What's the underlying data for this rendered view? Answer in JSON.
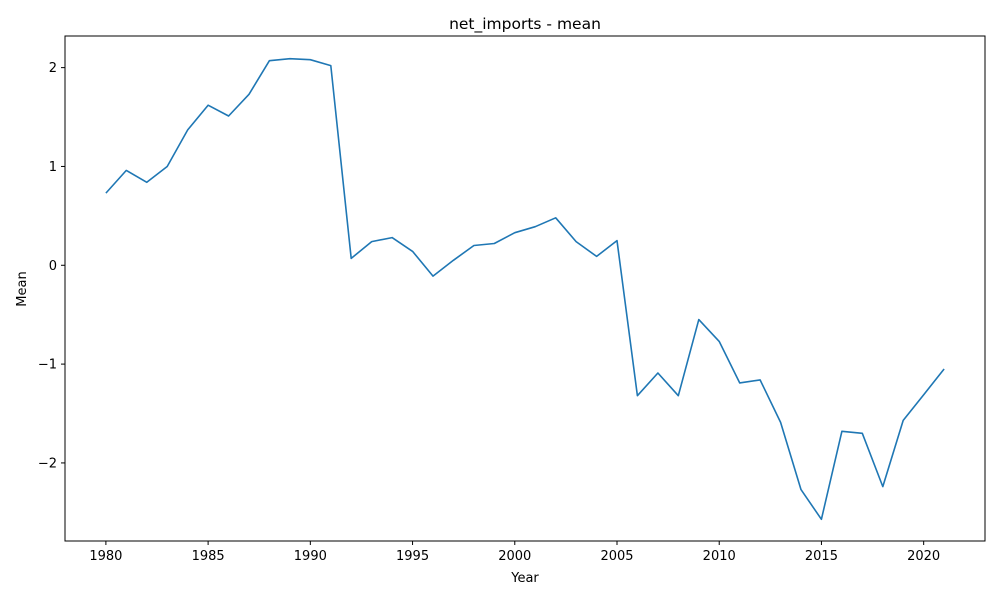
{
  "chart_data": {
    "type": "line",
    "title": "net_imports - mean",
    "xlabel": "Year",
    "ylabel": "Mean",
    "xlim": [
      1978,
      2023
    ],
    "ylim": [
      -2.79,
      2.32
    ],
    "xticks": [
      1980,
      1985,
      1990,
      1995,
      2000,
      2005,
      2010,
      2015,
      2020
    ],
    "yticks": [
      -2,
      -1,
      0,
      1,
      2
    ],
    "ytick_labels": [
      "−2",
      "−1",
      "0",
      "1",
      "2"
    ],
    "grid": false,
    "color": "#1f77b4",
    "series": [
      {
        "x": [
          1980,
          1981,
          1982,
          1983,
          1984,
          1985,
          1986,
          1987,
          1988,
          1989,
          1990,
          1991,
          1992,
          1993,
          1994,
          1995,
          1996,
          1997,
          1998,
          1999,
          2000,
          2001,
          2002,
          2003,
          2004,
          2005,
          2006,
          2007,
          2008,
          2009,
          2010,
          2011,
          2012,
          2013,
          2014,
          2015,
          2016,
          2017,
          2018,
          2019,
          2020,
          2021
        ],
        "values": [
          0.73,
          0.96,
          0.84,
          1.0,
          1.37,
          1.62,
          1.51,
          1.73,
          2.07,
          2.09,
          2.08,
          2.02,
          0.07,
          0.24,
          0.28,
          0.14,
          -0.11,
          0.05,
          0.2,
          0.22,
          0.33,
          0.39,
          0.48,
          0.24,
          0.09,
          0.25,
          -1.32,
          -1.09,
          -1.32,
          -0.55,
          -0.77,
          -1.19,
          -1.16,
          -1.59,
          -2.27,
          -2.57,
          -1.68,
          -1.7,
          -2.24,
          -1.57,
          -1.31,
          -1.05
        ]
      }
    ]
  }
}
